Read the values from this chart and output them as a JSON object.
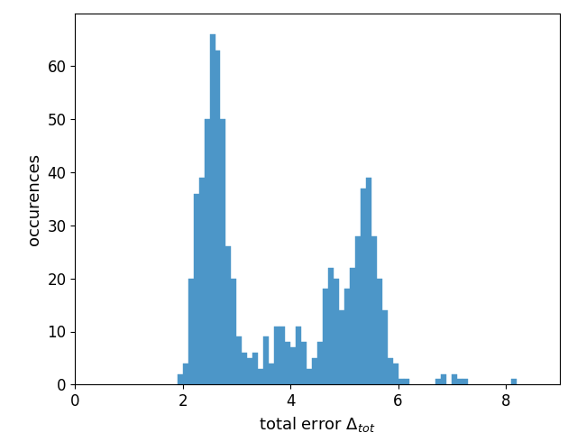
{
  "bar_color": "#4c96c8",
  "xlabel": "total error $\\Delta_{tot}$",
  "ylabel": "occurences",
  "xlim": [
    0,
    9.0
  ],
  "ylim": [
    0,
    70
  ],
  "xticks": [
    0,
    2,
    4,
    6,
    8
  ],
  "yticks": [
    0,
    10,
    20,
    30,
    40,
    50,
    60
  ],
  "bin_width": 0.1,
  "xlabel_fontsize": 13,
  "ylabel_fontsize": 13,
  "tick_fontsize": 12,
  "bin_edges": [
    1.9,
    2.0,
    2.1,
    2.2,
    2.3,
    2.4,
    2.5,
    2.6,
    2.7,
    2.8,
    2.9,
    3.0,
    3.1,
    3.2,
    3.3,
    3.4,
    3.5,
    3.6,
    3.7,
    3.8,
    3.9,
    4.0,
    4.1,
    4.2,
    4.3,
    4.4,
    4.5,
    4.6,
    4.7,
    4.8,
    4.9,
    5.0,
    5.1,
    5.2,
    5.3,
    5.4,
    5.5,
    5.6,
    5.7,
    5.8,
    5.9,
    6.0,
    6.1,
    6.2,
    6.3,
    6.4,
    6.5,
    6.6,
    6.7,
    6.8,
    7.0,
    7.1,
    7.2,
    7.3,
    8.1,
    8.2
  ],
  "heights": [
    2,
    4,
    20,
    36,
    39,
    50,
    66,
    63,
    50,
    26,
    20,
    9,
    6,
    5,
    6,
    3,
    9,
    4,
    11,
    11,
    8,
    7,
    11,
    8,
    3,
    5,
    8,
    18,
    22,
    20,
    14,
    18,
    22,
    28,
    37,
    39,
    28,
    20,
    14,
    5,
    4,
    1,
    1,
    0,
    0,
    0,
    0,
    0,
    1,
    2,
    2,
    1,
    1,
    0,
    1,
    0
  ],
  "figsize": [
    6.4,
    4.9
  ],
  "dpi": 100
}
